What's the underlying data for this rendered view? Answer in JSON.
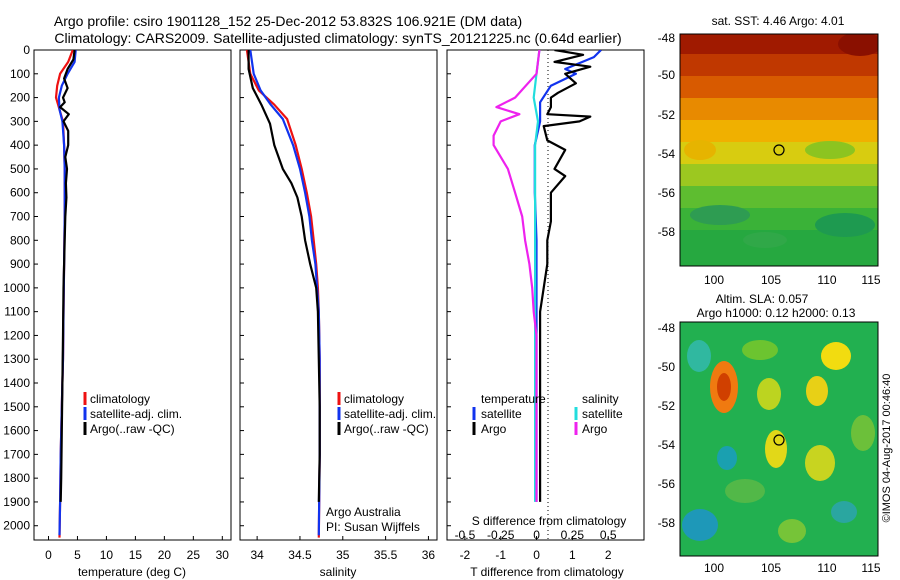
{
  "header": {
    "line1": "Argo profile: csiro 1901128_152 25-Dec-2012 53.832S 106.921E (DM data)",
    "line2": "Climatology: CARS2009. Satellite-adjusted climatology: synTS_20121225.nc (0.64d earlier)"
  },
  "footer": {
    "credit": "©IMOS 04-Aug-2017 00:46:40",
    "agency": "Argo Australia",
    "pi": "PI: Susan Wijffels"
  },
  "colors": {
    "climatology": "#ee1111",
    "satellite": "#1133ee",
    "argo": "#000000",
    "salt_satellite": "#22dddd",
    "salt_argo": "#ee22ee",
    "map_marker": "#000000"
  },
  "chart_data": [
    {
      "id": "temperature",
      "type": "line",
      "xlabel": "temperature (deg C)",
      "ylabel": "",
      "xlim": [
        -2.5,
        31.5
      ],
      "ylim": [
        2060,
        0
      ],
      "xticks": [
        0,
        5,
        10,
        15,
        20,
        25,
        30
      ],
      "yticks": [
        0,
        100,
        200,
        300,
        400,
        500,
        600,
        700,
        800,
        900,
        1000,
        1100,
        1200,
        1300,
        1400,
        1500,
        1600,
        1700,
        1800,
        1900,
        2000
      ],
      "legend": {
        "position": "lower-center",
        "entries": [
          "climatology",
          "satellite-adj. clim.",
          "Argo(..raw -QC)"
        ]
      },
      "series": [
        {
          "name": "climatology",
          "color": "#ee1111",
          "points": [
            [
              4.2,
              0
            ],
            [
              3.4,
              50
            ],
            [
              2.0,
              100
            ],
            [
              1.5,
              150
            ],
            [
              1.3,
              200
            ],
            [
              1.9,
              250
            ],
            [
              2.5,
              300
            ],
            [
              2.7,
              400
            ],
            [
              2.8,
              500
            ],
            [
              2.8,
              700
            ],
            [
              2.7,
              900
            ],
            [
              2.6,
              1100
            ],
            [
              2.5,
              1300
            ],
            [
              2.3,
              1500
            ],
            [
              2.1,
              1700
            ],
            [
              2.0,
              1900
            ],
            [
              1.9,
              2050
            ]
          ]
        },
        {
          "name": "satellite-adj. clim.",
          "color": "#1133ee",
          "points": [
            [
              4.7,
              0
            ],
            [
              4.5,
              50
            ],
            [
              3.3,
              100
            ],
            [
              2.3,
              150
            ],
            [
              1.8,
              200
            ],
            [
              1.9,
              250
            ],
            [
              2.4,
              300
            ],
            [
              2.7,
              400
            ],
            [
              2.8,
              500
            ],
            [
              2.8,
              700
            ],
            [
              2.7,
              900
            ],
            [
              2.6,
              1100
            ],
            [
              2.5,
              1300
            ],
            [
              2.3,
              1500
            ],
            [
              2.1,
              1700
            ],
            [
              2.0,
              1900
            ],
            [
              1.9,
              2040
            ]
          ]
        },
        {
          "name": "Argo(..raw -QC)",
          "color": "#000000",
          "points": [
            [
              4.5,
              0
            ],
            [
              4.3,
              40
            ],
            [
              3.3,
              80
            ],
            [
              2.7,
              120
            ],
            [
              3.3,
              160
            ],
            [
              2.5,
              200
            ],
            [
              2.8,
              220
            ],
            [
              2.0,
              240
            ],
            [
              3.5,
              270
            ],
            [
              2.6,
              300
            ],
            [
              3.4,
              340
            ],
            [
              3.4,
              400
            ],
            [
              2.9,
              450
            ],
            [
              3.2,
              500
            ],
            [
              3.0,
              560
            ],
            [
              3.1,
              620
            ],
            [
              2.9,
              700
            ],
            [
              2.8,
              800
            ],
            [
              2.7,
              900
            ],
            [
              2.6,
              1000
            ],
            [
              2.5,
              1200
            ],
            [
              2.4,
              1400
            ],
            [
              2.3,
              1600
            ],
            [
              2.2,
              1800
            ],
            [
              2.1,
              1900
            ]
          ]
        }
      ]
    },
    {
      "id": "salinity",
      "type": "line",
      "xlabel": "salinity",
      "ylabel": "",
      "xlim": [
        33.8,
        36.1
      ],
      "ylim": [
        2060,
        0
      ],
      "xticks": [
        34,
        34.5,
        35,
        35.5,
        36
      ],
      "legend": {
        "position": "lower-right",
        "entries": [
          "climatology",
          "satellite-adj. clim.",
          "Argo(..raw -QC)"
        ]
      },
      "series": [
        {
          "name": "climatology",
          "color": "#ee1111",
          "points": [
            [
              33.88,
              0
            ],
            [
              33.92,
              100
            ],
            [
              34.02,
              170
            ],
            [
              34.2,
              230
            ],
            [
              34.35,
              290
            ],
            [
              34.45,
              400
            ],
            [
              34.52,
              500
            ],
            [
              34.58,
              600
            ],
            [
              34.63,
              700
            ],
            [
              34.66,
              800
            ],
            [
              34.69,
              900
            ],
            [
              34.71,
              1000
            ],
            [
              34.72,
              1100
            ],
            [
              34.73,
              1300
            ],
            [
              34.73,
              1500
            ],
            [
              34.73,
              1700
            ],
            [
              34.72,
              2050
            ]
          ]
        },
        {
          "name": "satellite-adj. clim.",
          "color": "#1133ee",
          "points": [
            [
              33.92,
              0
            ],
            [
              33.96,
              100
            ],
            [
              34.04,
              170
            ],
            [
              34.16,
              230
            ],
            [
              34.3,
              290
            ],
            [
              34.42,
              400
            ],
            [
              34.5,
              500
            ],
            [
              34.56,
              600
            ],
            [
              34.61,
              700
            ],
            [
              34.64,
              800
            ],
            [
              34.68,
              900
            ],
            [
              34.7,
              1000
            ],
            [
              34.72,
              1100
            ],
            [
              34.73,
              1300
            ],
            [
              34.73,
              1500
            ],
            [
              34.73,
              1700
            ],
            [
              34.72,
              2040
            ]
          ]
        },
        {
          "name": "Argo(..raw -QC)",
          "color": "#000000",
          "points": [
            [
              33.9,
              0
            ],
            [
              33.9,
              80
            ],
            [
              33.95,
              160
            ],
            [
              34.05,
              230
            ],
            [
              34.15,
              310
            ],
            [
              34.2,
              400
            ],
            [
              34.3,
              500
            ],
            [
              34.4,
              560
            ],
            [
              34.47,
              620
            ],
            [
              34.52,
              700
            ],
            [
              34.56,
              800
            ],
            [
              34.62,
              900
            ],
            [
              34.69,
              1000
            ],
            [
              34.71,
              1100
            ],
            [
              34.72,
              1300
            ],
            [
              34.73,
              1500
            ],
            [
              34.73,
              1700
            ],
            [
              34.72,
              1900
            ]
          ]
        }
      ]
    },
    {
      "id": "difference",
      "type": "line",
      "xlabel": "T difference from climatology",
      "xlabel_top": "S difference from climatology",
      "xlim": [
        -2.5,
        3.0
      ],
      "ylim": [
        2060,
        0
      ],
      "xticks": [
        -2,
        -1,
        0,
        1,
        2
      ],
      "xticks_top": [
        -0.5,
        -0.25,
        0,
        0.25,
        0.5
      ],
      "legend": {
        "position": "lower-center",
        "temperature_title": "temperature",
        "salinity_title": "salinity",
        "entries": [
          "satellite",
          "Argo",
          "satellite",
          "Argo"
        ]
      },
      "series": [
        {
          "name": "temperature satellite",
          "color": "#1133ee",
          "points": [
            [
              1.8,
              0
            ],
            [
              1.6,
              30
            ],
            [
              0.8,
              80
            ],
            [
              1.1,
              100
            ],
            [
              0.4,
              150
            ],
            [
              0.1,
              220
            ],
            [
              0.1,
              300
            ],
            [
              -0.05,
              400
            ],
            [
              -0.05,
              600
            ],
            [
              0,
              800
            ],
            [
              0,
              1000
            ],
            [
              0,
              1400
            ],
            [
              0,
              1900
            ]
          ]
        },
        {
          "name": "temperature Argo",
          "color": "#000000",
          "points": [
            [
              0.5,
              0
            ],
            [
              1.3,
              20
            ],
            [
              0.5,
              50
            ],
            [
              1.5,
              70
            ],
            [
              0.8,
              100
            ],
            [
              1.1,
              140
            ],
            [
              0.6,
              180
            ],
            [
              0.4,
              200
            ],
            [
              0.4,
              240
            ],
            [
              0.3,
              270
            ],
            [
              1.5,
              280
            ],
            [
              1.2,
              300
            ],
            [
              0.2,
              320
            ],
            [
              0.3,
              380
            ],
            [
              0.8,
              420
            ],
            [
              0.5,
              500
            ],
            [
              0.8,
              530
            ],
            [
              0.4,
              600
            ],
            [
              0.4,
              720
            ],
            [
              0.3,
              800
            ],
            [
              0.3,
              900
            ],
            [
              0.2,
              1000
            ],
            [
              0.1,
              1100
            ],
            [
              0.1,
              1400
            ],
            [
              0.1,
              1900
            ]
          ]
        },
        {
          "name": "salinity satellite",
          "color": "#22dddd",
          "points": [
            [
              0.02,
              0
            ],
            [
              0.0,
              100
            ],
            [
              -0.02,
              200
            ],
            [
              0.01,
              300
            ],
            [
              -0.01,
              400
            ],
            [
              -0.01,
              500
            ],
            [
              -0.01,
              600
            ],
            [
              -0.01,
              800
            ],
            [
              -0.01,
              1000
            ],
            [
              -0.01,
              1200
            ],
            [
              -0.01,
              1500
            ],
            [
              -0.01,
              1900
            ]
          ]
        },
        {
          "name": "salinity Argo",
          "color": "#ee22ee",
          "points": [
            [
              0.02,
              0
            ],
            [
              0.0,
              100
            ],
            [
              -0.15,
              200
            ],
            [
              -0.28,
              240
            ],
            [
              -0.12,
              270
            ],
            [
              -0.25,
              300
            ],
            [
              -0.3,
              360
            ],
            [
              -0.3,
              400
            ],
            [
              -0.2,
              500
            ],
            [
              -0.15,
              600
            ],
            [
              -0.1,
              700
            ],
            [
              -0.08,
              800
            ],
            [
              -0.05,
              900
            ],
            [
              -0.03,
              1000
            ],
            [
              -0.02,
              1100
            ],
            [
              0,
              1200
            ],
            [
              0,
              1400
            ],
            [
              0,
              1900
            ]
          ]
        }
      ]
    }
  ],
  "maps": [
    {
      "id": "sst-map",
      "title": "sat. SST: 4.46 Argo: 4.01",
      "xticks": [
        "100",
        "105",
        "110",
        "115"
      ],
      "yticks": [
        "-48",
        "-50",
        "-52",
        "-54",
        "-56",
        "-58"
      ],
      "lon_range": [
        98,
        115.5
      ],
      "lat_range": [
        -59.9,
        -47.5
      ],
      "marker": {
        "lon": 106.921,
        "lat": -53.832
      }
    },
    {
      "id": "sla-map",
      "title": "Altim. SLA: 0.057",
      "subtitle": "Argo h1000: 0.12 h2000: 0.13",
      "xticks": [
        "100",
        "105",
        "110",
        "115"
      ],
      "yticks": [
        "-48",
        "-50",
        "-52",
        "-54",
        "-56",
        "-58"
      ],
      "lon_range": [
        98,
        115.5
      ],
      "lat_range": [
        -59.9,
        -47.5
      ],
      "marker": {
        "lon": 106.921,
        "lat": -53.832
      }
    }
  ]
}
